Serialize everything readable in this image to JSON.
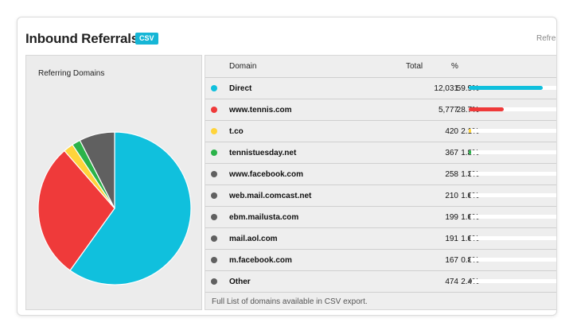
{
  "widget": {
    "title": "Inbound Referrals",
    "csv_label": "CSV",
    "header_link": "Refre"
  },
  "pie_panel": {
    "title": "Referring Domains"
  },
  "table": {
    "columns": {
      "domain": "Domain",
      "total": "Total",
      "percent": "%"
    },
    "rows": [
      {
        "domain": "Direct",
        "total": "12,031",
        "percent": "59.9%",
        "share": 0.599,
        "color": "#10c0dd"
      },
      {
        "domain": "www.tennis.com",
        "total": "5,777",
        "percent": "28.7%",
        "share": 0.287,
        "color": "#ef3a3a"
      },
      {
        "domain": "t.co",
        "total": "420",
        "percent": "2.1%",
        "share": 0.021,
        "color": "#ffd43b"
      },
      {
        "domain": "tennistuesday.net",
        "total": "367",
        "percent": "1.8%",
        "share": 0.018,
        "color": "#2bb34a"
      },
      {
        "domain": "www.facebook.com",
        "total": "258",
        "percent": "1.3%",
        "share": 0.013,
        "color": "#606060"
      },
      {
        "domain": "web.mail.comcast.net",
        "total": "210",
        "percent": "1.0%",
        "share": 0.01,
        "color": "#606060"
      },
      {
        "domain": "ebm.mailusta.com",
        "total": "199",
        "percent": "1.0%",
        "share": 0.01,
        "color": "#606060"
      },
      {
        "domain": "mail.aol.com",
        "total": "191",
        "percent": "1.0%",
        "share": 0.01,
        "color": "#606060"
      },
      {
        "domain": "m.facebook.com",
        "total": "167",
        "percent": "0.8%",
        "share": 0.008,
        "color": "#606060"
      },
      {
        "domain": "Other",
        "total": "474",
        "percent": "2.4%",
        "share": 0.024,
        "color": "#606060"
      }
    ],
    "footer": "Full List of domains available in CSV export."
  },
  "chart_data": {
    "type": "pie",
    "title": "Referring Domains",
    "categories": [
      "Direct",
      "www.tennis.com",
      "t.co",
      "tennistuesday.net",
      "Other (grouped)"
    ],
    "values": [
      59.9,
      28.7,
      2.1,
      1.8,
      7.5
    ],
    "colors": [
      "#10c0dd",
      "#ef3a3a",
      "#ffd43b",
      "#2bb34a",
      "#606060"
    ]
  }
}
